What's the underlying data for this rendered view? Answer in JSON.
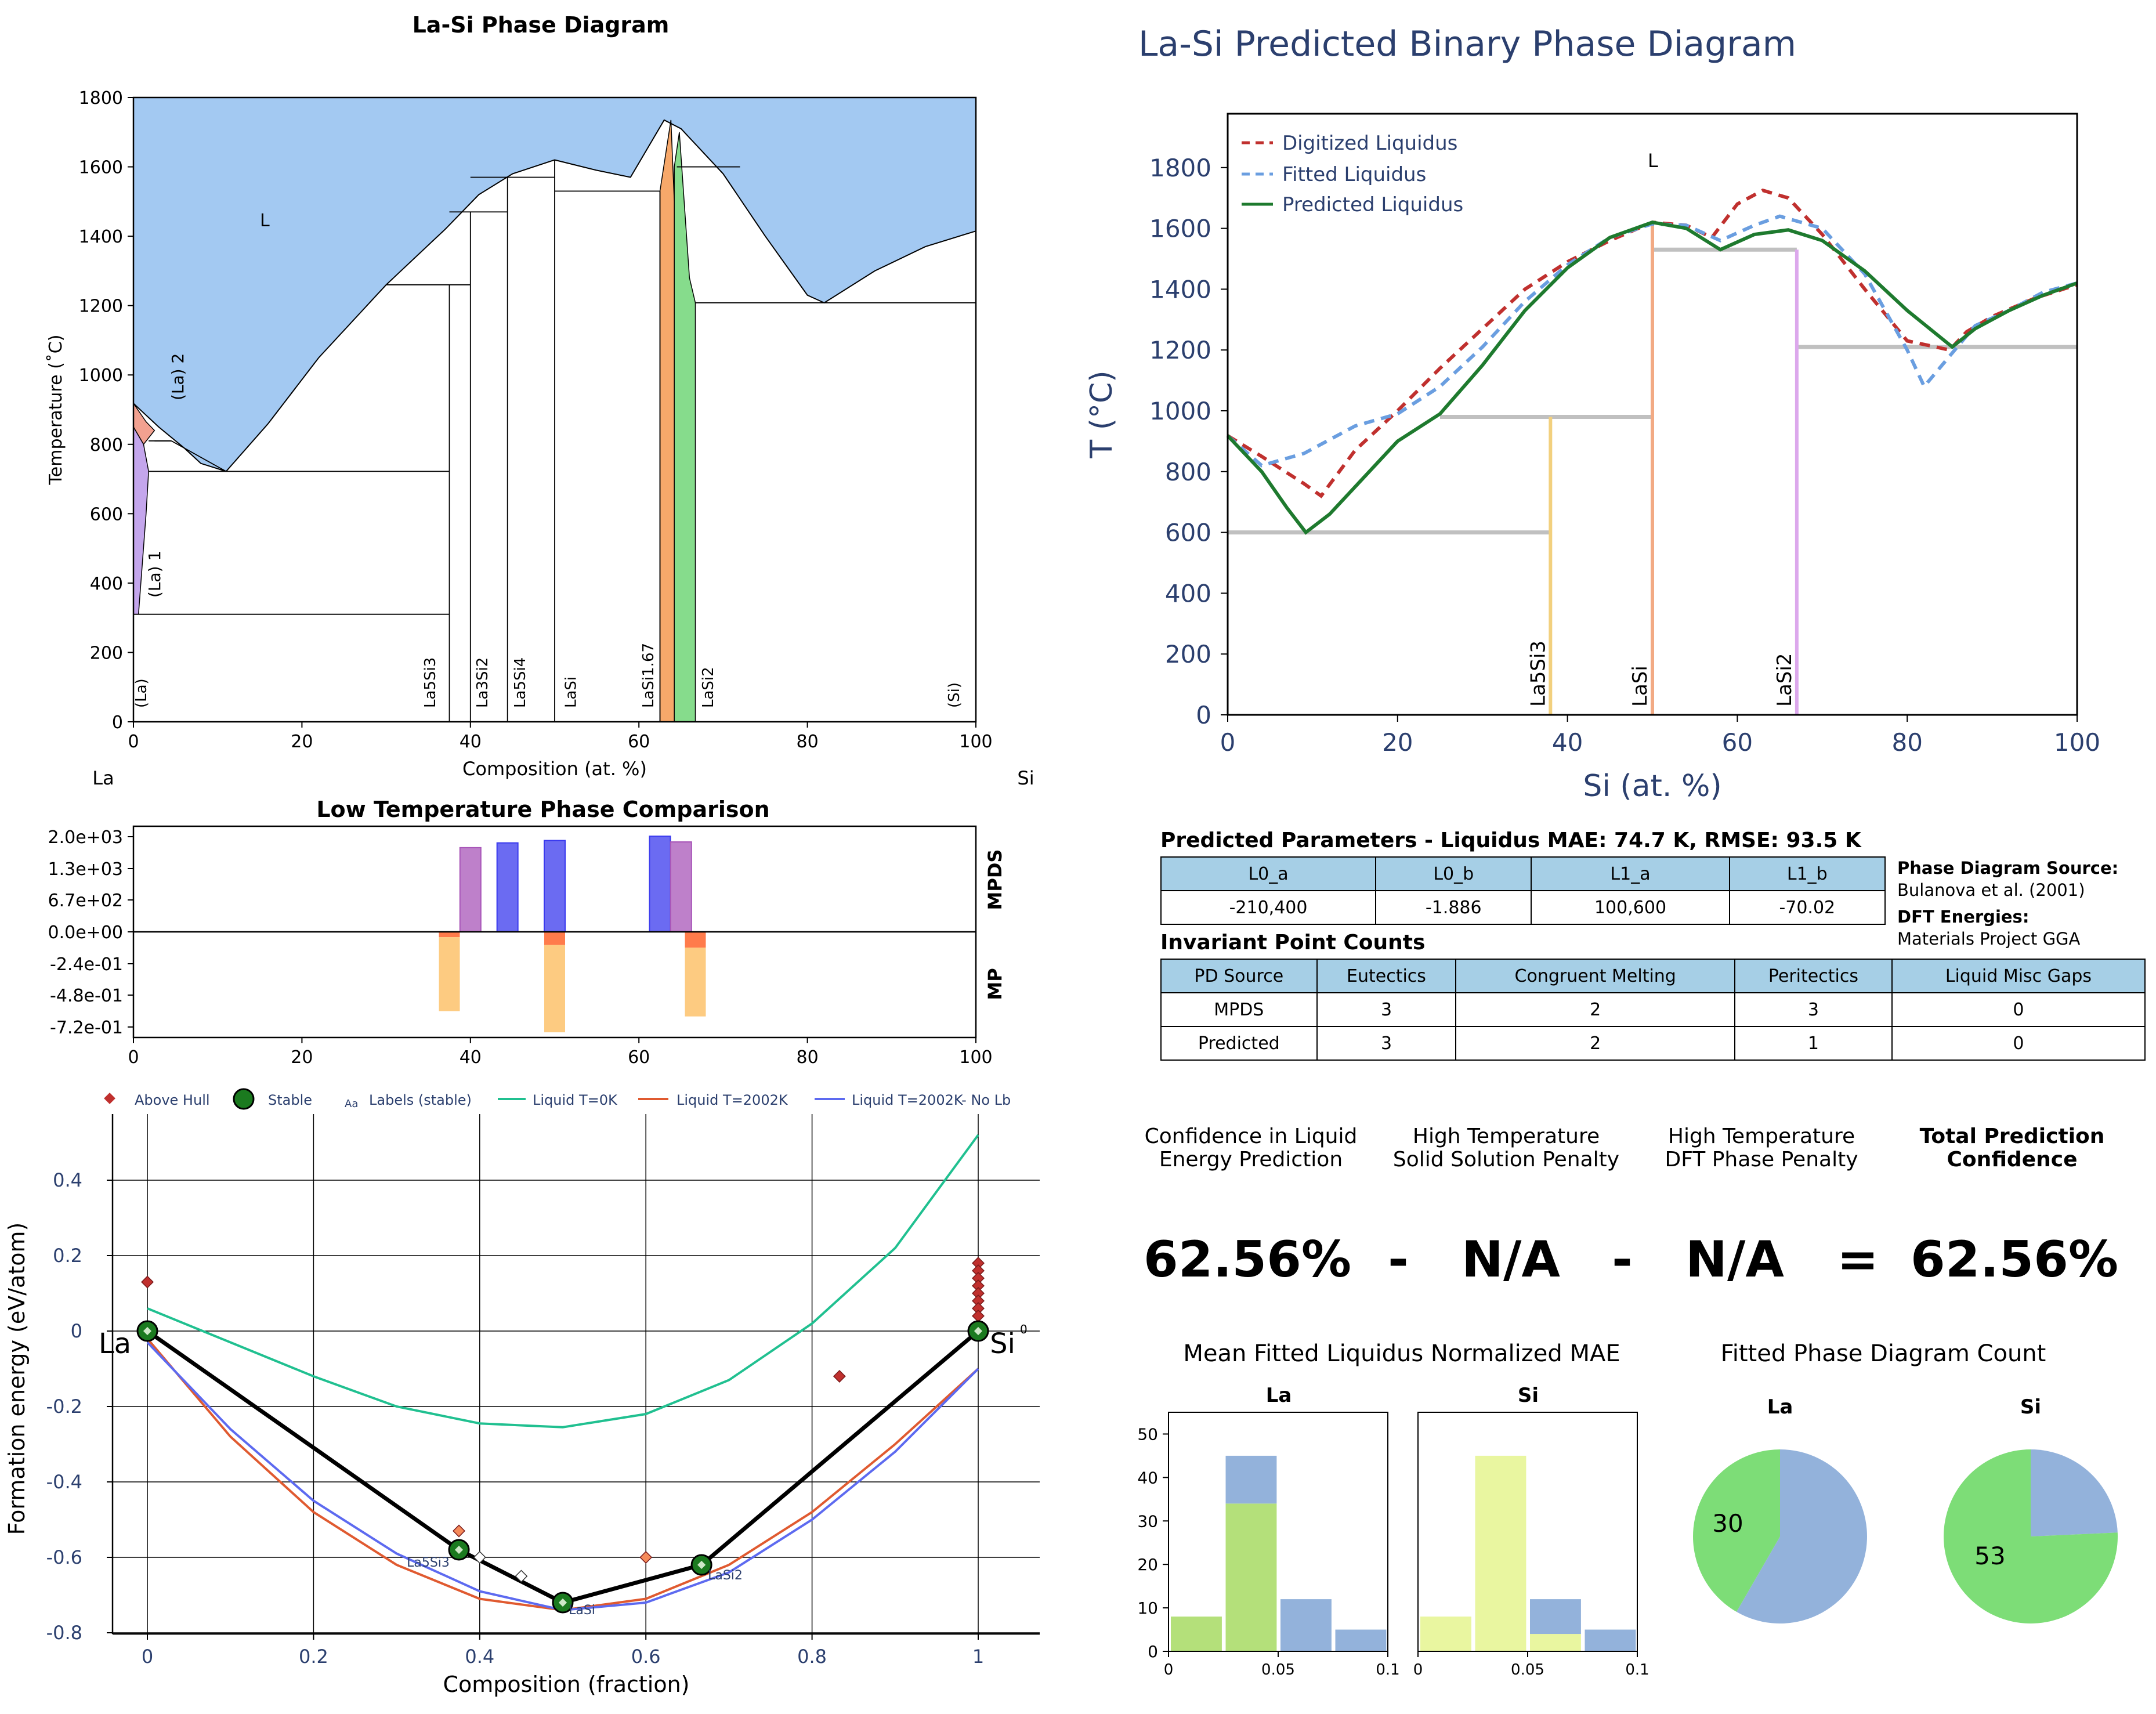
{
  "left": {
    "phase_diagram": {
      "title": "La-Si Phase Diagram",
      "xlabel": "Composition (at. %)",
      "ylabel": "Temperature (˚C)",
      "left_element": "La",
      "right_element": "Si",
      "x_ticks": [
        "0",
        "20",
        "40",
        "60",
        "80",
        "100"
      ],
      "y_ticks": [
        "0",
        "200",
        "400",
        "600",
        "800",
        "1000",
        "1200",
        "1400",
        "1600",
        "1800"
      ],
      "region_labels": {
        "liquid": "L",
        "la2": "(La) 2",
        "la1": "(La) 1"
      },
      "phase_labels": [
        "(La)",
        "La5Si3",
        "La3Si2",
        "La5Si4",
        "LaSi",
        "LaSi1.67",
        "LaSi2",
        "(Si)"
      ]
    },
    "comparison": {
      "title": "Low Temperature Phase Comparison",
      "top_label": "MPDS",
      "bottom_label": "MP",
      "y_ticks": [
        "2.0e+03",
        "1.3e+03",
        "6.7e+02",
        "0.0e+00",
        "-2.4e-01",
        "-4.8e-01",
        "-7.2e-01"
      ],
      "x_ticks": [
        "0",
        "20",
        "40",
        "60",
        "80",
        "100"
      ]
    },
    "hull": {
      "xlabel": "Composition (fraction)",
      "ylabel": "Formation energy (eV/atom)",
      "legend": {
        "above_hull": "Above Hull",
        "stable": "Stable",
        "labels_marker": "Aa",
        "labels": "Labels (stable)",
        "liquid0": "Liquid T=0K",
        "liquid2002": "Liquid T=2002K",
        "liquid_nolb": "Liquid T=2002K- No Lb"
      },
      "x_ticks": [
        "0",
        "0.2",
        "0.4",
        "0.6",
        "0.8",
        "1"
      ],
      "y_ticks": [
        "0.4",
        "0.2",
        "0",
        "-0.2",
        "-0.4",
        "-0.6",
        "-0.8"
      ],
      "end_labels": [
        "La",
        "Si"
      ],
      "stable_labels": [
        "La5Si3",
        "LaSi",
        "LaSi2"
      ],
      "zero_right": "0"
    }
  },
  "right": {
    "predicted": {
      "title": "La-Si Predicted Binary Phase Diagram",
      "xlabel": "Si (at. %)",
      "ylabel": "T (°C)",
      "x_ticks": [
        "0",
        "20",
        "40",
        "60",
        "80",
        "100"
      ],
      "y_ticks": [
        "0",
        "200",
        "400",
        "600",
        "800",
        "1000",
        "1200",
        "1400",
        "1600",
        "1800"
      ],
      "legend": [
        "Digitized Liquidus",
        "Fitted Liquidus",
        "Predicted Liquidus"
      ],
      "liquid_label": "L",
      "phase_labels": [
        "La5Si3",
        "LaSi",
        "LaSi2"
      ]
    },
    "params": {
      "title": "Predicted Parameters - Liquidus MAE: 74.7 K, RMSE: 93.5 K",
      "headers": [
        "L0_a",
        "L0_b",
        "L1_a",
        "L1_b"
      ],
      "values": [
        "-210,400",
        "-1.886",
        "100,600",
        "-70.02"
      ]
    },
    "source": {
      "pd_label": "Phase Diagram Source:",
      "pd_value": "Bulanova et al. (2001)",
      "dft_label": "DFT Energies:",
      "dft_value": "Materials Project GGA"
    },
    "invariant": {
      "title": "Invariant Point Counts",
      "headers": [
        "PD Source",
        "Eutectics",
        "Congruent Melting",
        "Peritectics",
        "Liquid Misc Gaps"
      ],
      "rows": [
        [
          "MPDS",
          "3",
          "2",
          "3",
          "0"
        ],
        [
          "Predicted",
          "3",
          "2",
          "1",
          "0"
        ]
      ]
    },
    "confidence": {
      "h1a": "Confidence in Liquid",
      "h1b": "Energy Prediction",
      "h2a": "High Temperature",
      "h2b": "Solid Solution Penalty",
      "h3a": "High Temperature",
      "h3b": "DFT Phase Penalty",
      "h4a": "Total Prediction",
      "h4b": "Confidence",
      "v1": "62.56%",
      "op1": "-",
      "v2": "N/A",
      "op2": "-",
      "v3": "N/A",
      "op3": "=",
      "v4": "62.56%"
    },
    "mae": {
      "title": "Mean Fitted Liquidus Normalized MAE",
      "panels": [
        "La",
        "Si"
      ],
      "y_ticks": [
        "0",
        "10",
        "20",
        "30",
        "40",
        "50"
      ],
      "x_ticks": [
        "0",
        "0.05",
        "0.1"
      ]
    },
    "count": {
      "title": "Fitted Phase Diagram Count",
      "panels": [
        "La",
        "Si"
      ],
      "values": [
        "30",
        "53"
      ]
    }
  },
  "chart_data": [
    {
      "type": "area",
      "title": "La-Si Phase Diagram",
      "xlabel": "Composition (at. %)",
      "ylabel": "Temperature (˚C)",
      "xlim": [
        0,
        100
      ],
      "ylim": [
        0,
        1800
      ],
      "liquidus": {
        "x": [
          0,
          3,
          6,
          8,
          11,
          16,
          22,
          30,
          37,
          41,
          45,
          50,
          55,
          59,
          63,
          65,
          70,
          75,
          80,
          82,
          88,
          94,
          100
        ],
        "y": [
          918,
          850,
          790,
          745,
          722,
          860,
          1050,
          1260,
          1420,
          1520,
          1580,
          1620,
          1590,
          1570,
          1735,
          1710,
          1580,
          1400,
          1230,
          1208,
          1300,
          1370,
          1415
        ]
      },
      "invariant_lines_C": [
        310,
        722,
        1260,
        1470,
        1570,
        1530,
        1600,
        1208
      ],
      "phases": [
        {
          "name": "(La)",
          "x": 0
        },
        {
          "name": "La5Si3",
          "x": 37.5
        },
        {
          "name": "La3Si2",
          "x": 40
        },
        {
          "name": "La5Si4",
          "x": 44.4
        },
        {
          "name": "LaSi",
          "x": 50
        },
        {
          "name": "LaSi1.67",
          "x": 62.5
        },
        {
          "name": "LaSi2",
          "x": 66.7
        },
        {
          "name": "(Si)",
          "x": 100
        }
      ],
      "colors": {
        "liquid": "#a3c9f2",
        "LaSi1.67": "#f7a86a",
        "LaSi2": "#86dc8c",
        "La1": "#c4a6ec",
        "La2": "#f2a190"
      }
    },
    {
      "type": "bar",
      "title": "Low Temperature Phase Comparison",
      "xlim": [
        0,
        100
      ],
      "series": [
        {
          "name": "MPDS",
          "bars": [
            {
              "x": 40,
              "value": 1770,
              "color": "#a855b8"
            },
            {
              "x": 44.4,
              "value": 1870,
              "color": "#3a3aee"
            },
            {
              "x": 50,
              "value": 1920,
              "color": "#3a3aee"
            },
            {
              "x": 62.5,
              "value": 2010,
              "color": "#3a3aee"
            },
            {
              "x": 65,
              "value": 1890,
              "color": "#a855b8"
            }
          ]
        },
        {
          "name": "MP",
          "bars": [
            {
              "x": 37.5,
              "top": -0.04,
              "bottom": -0.6
            },
            {
              "x": 50,
              "top": -0.1,
              "bottom": -0.76
            },
            {
              "x": 66.7,
              "top": -0.12,
              "bottom": -0.64
            }
          ]
        }
      ]
    },
    {
      "type": "line",
      "xlabel": "Composition (fraction)",
      "ylabel": "Formation energy (eV/atom)",
      "xlim": [
        -0.02,
        1.07
      ],
      "ylim": [
        -0.8,
        0.52
      ],
      "hull": {
        "x": [
          0,
          0.375,
          0.5,
          0.667,
          1
        ],
        "y": [
          0,
          -0.58,
          -0.72,
          -0.62,
          0
        ]
      },
      "above_hull": [
        [
          0,
          0.13
        ],
        [
          0.375,
          -0.53
        ],
        [
          0.4,
          -0.6
        ],
        [
          0.45,
          -0.65
        ],
        [
          0.6,
          -0.6
        ],
        [
          0.833,
          -0.12
        ],
        [
          1,
          0.18
        ],
        [
          1,
          0.16
        ],
        [
          1,
          0.14
        ],
        [
          1,
          0.12
        ],
        [
          1,
          0.1
        ],
        [
          1,
          0.08
        ],
        [
          1,
          0.06
        ],
        [
          1,
          0.04
        ]
      ],
      "series": [
        {
          "name": "Liquid T=0K",
          "color": "#20c090",
          "x": [
            0,
            0.1,
            0.2,
            0.3,
            0.4,
            0.5,
            0.6,
            0.7,
            0.8,
            0.9,
            1
          ],
          "y": [
            0.06,
            -0.03,
            -0.12,
            -0.2,
            -0.245,
            -0.255,
            -0.22,
            -0.13,
            0.02,
            0.22,
            0.52
          ]
        },
        {
          "name": "Liquid T=2002K",
          "color": "#e05a30",
          "x": [
            0,
            0.1,
            0.2,
            0.3,
            0.4,
            0.5,
            0.6,
            0.7,
            0.8,
            0.9,
            1
          ],
          "y": [
            -0.02,
            -0.28,
            -0.48,
            -0.62,
            -0.71,
            -0.74,
            -0.71,
            -0.62,
            -0.48,
            -0.3,
            -0.1
          ]
        },
        {
          "name": "Liquid T=2002K- No Lb",
          "color": "#5d6af0",
          "x": [
            0,
            0.1,
            0.2,
            0.3,
            0.4,
            0.5,
            0.6,
            0.7,
            0.8,
            0.9,
            1
          ],
          "y": [
            -0.03,
            -0.26,
            -0.45,
            -0.59,
            -0.69,
            -0.74,
            -0.72,
            -0.64,
            -0.5,
            -0.32,
            -0.1
          ]
        }
      ]
    },
    {
      "type": "line",
      "title": "La-Si Predicted Binary Phase Diagram",
      "xlabel": "Si (at. %)",
      "ylabel": "T (°C)",
      "xlim": [
        0,
        100
      ],
      "ylim": [
        0,
        1980
      ],
      "series": [
        {
          "name": "Digitized Liquidus",
          "color": "#c0302e",
          "x": [
            0,
            4,
            9,
            11,
            15,
            20,
            25,
            30,
            35,
            40,
            45,
            50,
            54,
            57,
            60,
            63,
            66,
            70,
            75,
            80,
            85,
            87,
            90,
            95,
            100
          ],
          "y": [
            918,
            850,
            760,
            720,
            870,
            1000,
            1140,
            1270,
            1400,
            1490,
            1560,
            1620,
            1610,
            1570,
            1680,
            1725,
            1700,
            1580,
            1400,
            1230,
            1200,
            1260,
            1310,
            1370,
            1415
          ]
        },
        {
          "name": "Fitted Liquidus",
          "color": "#6a9ee0",
          "x": [
            0,
            4,
            9,
            15,
            20,
            25,
            30,
            35,
            40,
            45,
            50,
            54,
            58,
            62,
            65,
            70,
            75,
            80,
            82,
            85,
            88,
            92,
            96,
            100
          ],
          "y": [
            918,
            820,
            860,
            950,
            990,
            1080,
            1210,
            1360,
            1480,
            1570,
            1615,
            1610,
            1560,
            1610,
            1640,
            1600,
            1450,
            1200,
            1080,
            1180,
            1280,
            1330,
            1390,
            1420
          ]
        },
        {
          "name": "Predicted Liquidus",
          "color": "#1e7a2e",
          "x": [
            0,
            4,
            7,
            9.2,
            12,
            16,
            20,
            25,
            30,
            35,
            40,
            45,
            50,
            54,
            58,
            62,
            66,
            70,
            75,
            80,
            85.3,
            88,
            92,
            96,
            100
          ],
          "y": [
            918,
            800,
            680,
            600,
            660,
            780,
            900,
            990,
            1150,
            1330,
            1470,
            1570,
            1620,
            1600,
            1530,
            1580,
            1595,
            1560,
            1460,
            1330,
            1210,
            1270,
            1330,
            1380,
            1420
          ]
        }
      ],
      "invariants": [
        {
          "y": 600,
          "x1": 0,
          "x2": 38
        },
        {
          "y": 980,
          "x1": 25,
          "x2": 50
        },
        {
          "y": 1530,
          "x1": 50,
          "x2": 67
        },
        {
          "y": 1210,
          "x1": 67,
          "x2": 100
        }
      ],
      "phase_lines": [
        {
          "name": "La5Si3",
          "x": 38,
          "top": 980,
          "color": "#f2d07e"
        },
        {
          "name": "LaSi",
          "x": 50,
          "top": 1620,
          "color": "#f2aa84"
        },
        {
          "name": "LaSi2",
          "x": 67,
          "top": 1530,
          "color": "#dca8ec"
        }
      ]
    },
    {
      "type": "bar",
      "title": "Mean Fitted Liquidus Normalized MAE",
      "panels": [
        {
          "name": "La",
          "bins": [
            0,
            0.025,
            0.05,
            0.075,
            0.1
          ],
          "stack": [
            [
              8,
              34,
              0,
              0
            ],
            [
              0,
              11,
              12,
              5
            ]
          ],
          "colors": [
            "#b4e07a",
            "#93b2db"
          ]
        },
        {
          "name": "Si",
          "bins": [
            0,
            0.025,
            0.05,
            0.075,
            0.1
          ],
          "stack": [
            [
              8,
              45,
              4,
              0
            ],
            [
              0,
              0,
              8,
              5
            ]
          ],
          "colors": [
            "#e9f6a0",
            "#93b2db"
          ]
        }
      ],
      "xlim": [
        0,
        0.1
      ],
      "ylim": [
        0,
        55
      ]
    },
    {
      "type": "pie",
      "title": "Fitted Phase Diagram Count",
      "pies": [
        {
          "name": "La",
          "slices": [
            {
              "value": 30,
              "color": "#7ddd77"
            },
            {
              "value": 42,
              "color": "#93b2db"
            }
          ]
        },
        {
          "name": "Si",
          "slices": [
            {
              "value": 53,
              "color": "#7ddd77"
            },
            {
              "value": 17,
              "color": "#93b2db"
            }
          ]
        }
      ]
    }
  ]
}
